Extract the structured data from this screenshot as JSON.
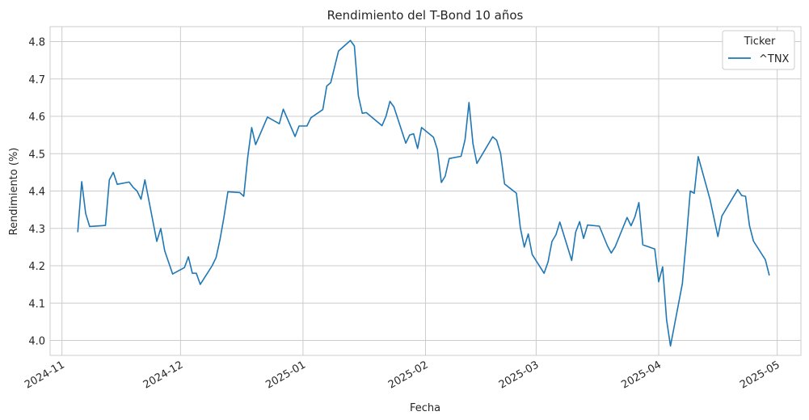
{
  "chart_data": {
    "type": "line",
    "title": "Rendimiento del T-Bond 10 años",
    "xlabel": "Fecha",
    "ylabel": "Rendimiento (%)",
    "grid": true,
    "legend": {
      "title": "Ticker",
      "placement": "top-right"
    },
    "xlim": [
      "2024-10-29",
      "2025-05-07"
    ],
    "ylim": [
      3.96,
      4.84
    ],
    "x_ticks": [
      "2024-11-01",
      "2024-12-01",
      "2025-01-01",
      "2025-02-01",
      "2025-03-01",
      "2025-04-01",
      "2025-05-01"
    ],
    "x_tick_labels": [
      "2024-11",
      "2024-12",
      "2025-01",
      "2025-02",
      "2025-03",
      "2025-04",
      "2025-05"
    ],
    "y_ticks": [
      4.0,
      4.1,
      4.2,
      4.3,
      4.4,
      4.5,
      4.6,
      4.7,
      4.8
    ],
    "y_tick_labels": [
      "4.0",
      "4.1",
      "4.2",
      "4.3",
      "4.4",
      "4.5",
      "4.6",
      "4.7",
      "4.8"
    ],
    "series": [
      {
        "name": "^TNX",
        "color": "#1f77b4",
        "points": [
          [
            "2024-11-05",
            4.29
          ],
          [
            "2024-11-06",
            4.425
          ],
          [
            "2024-11-07",
            4.34
          ],
          [
            "2024-11-08",
            4.305
          ],
          [
            "2024-11-12",
            4.308
          ],
          [
            "2024-11-13",
            4.43
          ],
          [
            "2024-11-14",
            4.45
          ],
          [
            "2024-11-15",
            4.418
          ],
          [
            "2024-11-18",
            4.424
          ],
          [
            "2024-11-19",
            4.41
          ],
          [
            "2024-11-20",
            4.4
          ],
          [
            "2024-11-21",
            4.378
          ],
          [
            "2024-11-22",
            4.43
          ],
          [
            "2024-11-25",
            4.265
          ],
          [
            "2024-11-26",
            4.3
          ],
          [
            "2024-11-27",
            4.24
          ],
          [
            "2024-11-29",
            4.178
          ],
          [
            "2024-12-02",
            4.195
          ],
          [
            "2024-12-03",
            4.224
          ],
          [
            "2024-12-04",
            4.18
          ],
          [
            "2024-12-05",
            4.18
          ],
          [
            "2024-12-06",
            4.15
          ],
          [
            "2024-12-09",
            4.2
          ],
          [
            "2024-12-10",
            4.222
          ],
          [
            "2024-12-11",
            4.27
          ],
          [
            "2024-12-12",
            4.33
          ],
          [
            "2024-12-13",
            4.398
          ],
          [
            "2024-12-16",
            4.396
          ],
          [
            "2024-12-17",
            4.386
          ],
          [
            "2024-12-18",
            4.49
          ],
          [
            "2024-12-19",
            4.57
          ],
          [
            "2024-12-20",
            4.524
          ],
          [
            "2024-12-23",
            4.598
          ],
          [
            "2024-12-26",
            4.58
          ],
          [
            "2024-12-27",
            4.619
          ],
          [
            "2024-12-30",
            4.546
          ],
          [
            "2024-12-31",
            4.574
          ],
          [
            "2025-01-02",
            4.574
          ],
          [
            "2025-01-03",
            4.596
          ],
          [
            "2025-01-06",
            4.618
          ],
          [
            "2025-01-07",
            4.681
          ],
          [
            "2025-01-08",
            4.69
          ],
          [
            "2025-01-10",
            4.775
          ],
          [
            "2025-01-13",
            4.803
          ],
          [
            "2025-01-14",
            4.788
          ],
          [
            "2025-01-15",
            4.655
          ],
          [
            "2025-01-16",
            4.608
          ],
          [
            "2025-01-17",
            4.61
          ],
          [
            "2025-01-21",
            4.575
          ],
          [
            "2025-01-22",
            4.6
          ],
          [
            "2025-01-23",
            4.64
          ],
          [
            "2025-01-24",
            4.625
          ],
          [
            "2025-01-27",
            4.528
          ],
          [
            "2025-01-28",
            4.55
          ],
          [
            "2025-01-29",
            4.553
          ],
          [
            "2025-01-30",
            4.514
          ],
          [
            "2025-01-31",
            4.57
          ],
          [
            "2025-02-03",
            4.544
          ],
          [
            "2025-02-04",
            4.511
          ],
          [
            "2025-02-05",
            4.423
          ],
          [
            "2025-02-06",
            4.44
          ],
          [
            "2025-02-07",
            4.487
          ],
          [
            "2025-02-10",
            4.493
          ],
          [
            "2025-02-11",
            4.537
          ],
          [
            "2025-02-12",
            4.637
          ],
          [
            "2025-02-13",
            4.527
          ],
          [
            "2025-02-14",
            4.474
          ],
          [
            "2025-02-18",
            4.545
          ],
          [
            "2025-02-19",
            4.536
          ],
          [
            "2025-02-20",
            4.501
          ],
          [
            "2025-02-21",
            4.419
          ],
          [
            "2025-02-24",
            4.394
          ],
          [
            "2025-02-25",
            4.302
          ],
          [
            "2025-02-26",
            4.25
          ],
          [
            "2025-02-27",
            4.285
          ],
          [
            "2025-02-28",
            4.23
          ],
          [
            "2025-03-03",
            4.18
          ],
          [
            "2025-03-04",
            4.21
          ],
          [
            "2025-03-05",
            4.265
          ],
          [
            "2025-03-06",
            4.283
          ],
          [
            "2025-03-07",
            4.317
          ],
          [
            "2025-03-10",
            4.214
          ],
          [
            "2025-03-11",
            4.29
          ],
          [
            "2025-03-12",
            4.318
          ],
          [
            "2025-03-13",
            4.273
          ],
          [
            "2025-03-14",
            4.309
          ],
          [
            "2025-03-17",
            4.306
          ],
          [
            "2025-03-18",
            4.28
          ],
          [
            "2025-03-19",
            4.254
          ],
          [
            "2025-03-20",
            4.234
          ],
          [
            "2025-03-21",
            4.251
          ],
          [
            "2025-03-24",
            4.329
          ],
          [
            "2025-03-25",
            4.307
          ],
          [
            "2025-03-26",
            4.331
          ],
          [
            "2025-03-27",
            4.369
          ],
          [
            "2025-03-28",
            4.256
          ],
          [
            "2025-03-31",
            4.245
          ],
          [
            "2025-04-01",
            4.157
          ],
          [
            "2025-04-02",
            4.197
          ],
          [
            "2025-04-03",
            4.055
          ],
          [
            "2025-04-04",
            3.985
          ],
          [
            "2025-04-07",
            4.152
          ],
          [
            "2025-04-08",
            4.27
          ],
          [
            "2025-04-09",
            4.4
          ],
          [
            "2025-04-10",
            4.394
          ],
          [
            "2025-04-11",
            4.492
          ],
          [
            "2025-04-14",
            4.378
          ],
          [
            "2025-04-16",
            4.278
          ],
          [
            "2025-04-17",
            4.333
          ],
          [
            "2025-04-21",
            4.404
          ],
          [
            "2025-04-22",
            4.388
          ],
          [
            "2025-04-23",
            4.386
          ],
          [
            "2025-04-24",
            4.307
          ],
          [
            "2025-04-25",
            4.266
          ],
          [
            "2025-04-28",
            4.216
          ],
          [
            "2025-04-29",
            4.174
          ]
        ]
      }
    ]
  }
}
